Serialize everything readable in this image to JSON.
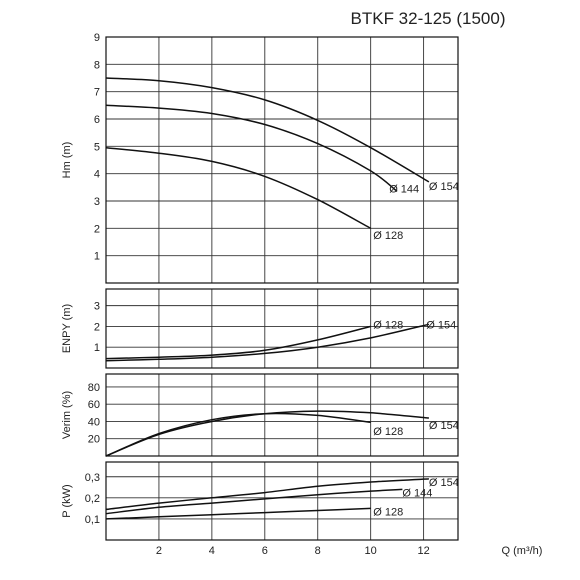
{
  "chart_data": {
    "title": "BTKF 32-125 (1500)",
    "x_axis": {
      "label": "Q (m³/h)",
      "range": [
        0,
        13.3
      ],
      "ticks": [
        2,
        4,
        6,
        8,
        10,
        12
      ],
      "tick_labels": [
        "2",
        "4",
        "6",
        "8",
        "10",
        "12"
      ]
    },
    "grid": true,
    "panels": [
      {
        "type": "line",
        "ylabel": "Hm (m)",
        "ylim": [
          0,
          9
        ],
        "yticks": [
          1,
          2,
          3,
          4,
          5,
          6,
          7,
          8,
          9
        ],
        "ytick_labels": [
          "1",
          "2",
          "3",
          "4",
          "5",
          "6",
          "7",
          "8",
          "9"
        ],
        "series": [
          {
            "name": "Ø154",
            "x": [
              0,
              2,
              4,
              6,
              8,
              10,
              12.2
            ],
            "y": [
              7.5,
              7.4,
              7.15,
              6.7,
              5.95,
              4.95,
              3.7
            ]
          },
          {
            "name": "Ø144",
            "x": [
              0,
              2,
              4,
              6,
              8,
              10,
              11.0
            ],
            "y": [
              6.5,
              6.4,
              6.2,
              5.8,
              5.1,
              4.1,
              3.35
            ]
          },
          {
            "name": "Ø128",
            "x": [
              0,
              2,
              4,
              6,
              8,
              10
            ],
            "y": [
              4.95,
              4.75,
              4.45,
              3.9,
              3.05,
              2.0
            ]
          }
        ],
        "curve_labels": [
          {
            "text": "Ø 144",
            "x": 10.7,
            "y": 3.45
          },
          {
            "text": "Ø 154",
            "x": 12.2,
            "y": 3.55
          },
          {
            "text": "Ø 128",
            "x": 10.1,
            "y": 1.75
          }
        ]
      },
      {
        "type": "line",
        "ylabel": "ENPY (m)",
        "ylim": [
          0,
          3.8
        ],
        "yticks": [
          1,
          2,
          3
        ],
        "ytick_labels": [
          "1",
          "2",
          "3"
        ],
        "series": [
          {
            "name": "Ø128",
            "x": [
              0,
              2,
              4,
              6,
              8,
              10
            ],
            "y": [
              0.45,
              0.52,
              0.62,
              0.85,
              1.35,
              2.0
            ]
          },
          {
            "name": "Ø154",
            "x": [
              0,
              2,
              4,
              6,
              8,
              10,
              12.2
            ],
            "y": [
              0.35,
              0.42,
              0.52,
              0.7,
              1.0,
              1.45,
              2.1
            ]
          }
        ],
        "curve_labels": [
          {
            "text": "Ø 128",
            "x": 10.1,
            "y": 2.1
          },
          {
            "text": "Ø 154",
            "x": 12.1,
            "y": 2.1
          }
        ]
      },
      {
        "type": "line",
        "ylabel": "Verim (%)",
        "ylim": [
          0,
          95
        ],
        "yticks": [
          20,
          40,
          60,
          80
        ],
        "ytick_labels": [
          "20",
          "40",
          "60",
          "80"
        ],
        "series": [
          {
            "name": "Ø128",
            "x": [
              0,
              2,
              4,
              6,
              8,
              10
            ],
            "y": [
              0,
              26,
              42,
              49,
              47,
              39
            ]
          },
          {
            "name": "Ø154",
            "x": [
              0,
              2,
              4,
              6,
              8,
              10,
              12.2
            ],
            "y": [
              0,
              25,
              40,
              49,
              52,
              50,
              44
            ]
          }
        ],
        "curve_labels": [
          {
            "text": "Ø 128",
            "x": 10.1,
            "y": 29
          },
          {
            "text": "Ø 154",
            "x": 12.2,
            "y": 36
          }
        ]
      },
      {
        "type": "line",
        "ylabel": "P (kW)",
        "ylim": [
          0,
          0.37
        ],
        "yticks": [
          0.1,
          0.2,
          0.3
        ],
        "ytick_labels": [
          "0,1",
          "0,2",
          "0,3"
        ],
        "series": [
          {
            "name": "Ø154",
            "x": [
              0,
              2,
              4,
              6,
              8,
              10,
              12.2
            ],
            "y": [
              0.145,
              0.175,
              0.2,
              0.225,
              0.255,
              0.275,
              0.29
            ]
          },
          {
            "name": "Ø144",
            "x": [
              0,
              2,
              4,
              6,
              8,
              10,
              11.2
            ],
            "y": [
              0.125,
              0.155,
              0.175,
              0.195,
              0.215,
              0.232,
              0.24
            ]
          },
          {
            "name": "Ø128",
            "x": [
              0,
              2,
              4,
              6,
              8,
              10
            ],
            "y": [
              0.1,
              0.11,
              0.12,
              0.13,
              0.14,
              0.15
            ]
          }
        ],
        "curve_labels": [
          {
            "text": "Ø 154",
            "x": 12.2,
            "y": 0.275
          },
          {
            "text": "Ø 144",
            "x": 11.2,
            "y": 0.225
          },
          {
            "text": "Ø 128",
            "x": 10.1,
            "y": 0.135
          }
        ]
      }
    ]
  }
}
